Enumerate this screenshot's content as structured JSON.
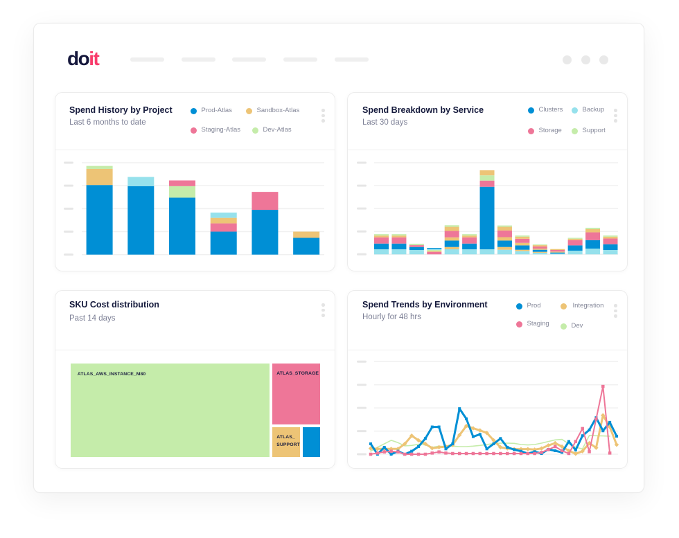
{
  "brand": {
    "logo_part1": "do",
    "logo_part2": "it"
  },
  "colors": {
    "blue": "#008fd5",
    "orange": "#edc476",
    "pink": "#ee7698",
    "green": "#c5ecaa",
    "cyan": "#96e1ec",
    "text_navy": "#151a3c",
    "logo_navy": "#14163b",
    "logo_pink": "#f83c6c"
  },
  "cards": [
    {
      "title": "Spend History by Project",
      "subtitle": "Last 6 months to date",
      "legend": [
        {
          "label": "Prod-Atlas",
          "color": "#008fd5"
        },
        {
          "label": "Sandbox-Atlas",
          "color": "#edc476"
        },
        {
          "label": "Staging-Atlas",
          "color": "#ee7698"
        },
        {
          "label": "Dev-Atlas",
          "color": "#c5ecaa"
        }
      ]
    },
    {
      "title": "Spend Breakdown by Service",
      "subtitle": "Last 30 days",
      "legend": [
        {
          "label": "Clusters",
          "color": "#008fd5"
        },
        {
          "label": "Backup",
          "color": "#96e1ec"
        },
        {
          "label": "Storage",
          "color": "#ee7698"
        },
        {
          "label": "Support",
          "color": "#c5ecaa"
        }
      ]
    },
    {
      "title": "SKU Cost distribution",
      "subtitle": "Past 14 days"
    },
    {
      "title": "Spend Trends by Environment",
      "subtitle": "Hourly for 48 hrs",
      "legend": [
        {
          "label": "Prod",
          "color": "#008fd5"
        },
        {
          "label": "Integration",
          "color": "#edc476"
        },
        {
          "label": "Staging",
          "color": "#ee7698"
        },
        {
          "label": "Dev",
          "color": "#c5ecaa"
        }
      ]
    }
  ],
  "chart_data": [
    {
      "type": "bar",
      "stacked": true,
      "title": "Spend History by Project",
      "subtitle": "Last 6 months to date",
      "xlabel": "",
      "ylabel": "",
      "ylim": [
        0,
        4
      ],
      "y_ticks": [
        0,
        1,
        2,
        3,
        4
      ],
      "grid": true,
      "legend": "top-right",
      "categories": [
        "",
        "",
        "",
        "",
        "",
        ""
      ],
      "series": [
        {
          "key": "prod",
          "name": "Prod-Atlas",
          "color": "#008fd5"
        },
        {
          "key": "sandbox",
          "name": "Sandbox-Atlas",
          "color": "#edc476"
        },
        {
          "key": "staging",
          "name": "Staging-Atlas",
          "color": "#ee7698"
        },
        {
          "key": "dev",
          "name": "Dev-Atlas",
          "color": "#c5ecaa"
        },
        {
          "key": "unlabeled",
          "name": "",
          "color": "#96e1ec"
        }
      ],
      "stacks": [
        [
          [
            "prod",
            3.03
          ],
          [
            "sandbox",
            0.7
          ],
          [
            "dev",
            0.13
          ]
        ],
        [
          [
            "prod",
            2.98
          ],
          [
            "unlabeled",
            0.4
          ]
        ],
        [
          [
            "prod",
            2.48
          ],
          [
            "dev",
            0.5
          ],
          [
            "staging",
            0.25
          ]
        ],
        [
          [
            "prod",
            1.0
          ],
          [
            "staging",
            0.36
          ],
          [
            "sandbox",
            0.24
          ],
          [
            "unlabeled",
            0.23
          ]
        ],
        [
          [
            "prod",
            1.95
          ],
          [
            "staging",
            0.78
          ]
        ],
        [
          [
            "prod",
            0.73
          ],
          [
            "sandbox",
            0.27
          ]
        ]
      ]
    },
    {
      "type": "bar",
      "stacked": true,
      "title": "Spend Breakdown by Service",
      "subtitle": "Last 30 days",
      "xlabel": "",
      "ylabel": "",
      "ylim": [
        0,
        4
      ],
      "y_ticks": [
        0,
        1,
        2,
        3,
        4
      ],
      "grid": true,
      "legend": "top-right",
      "categories": [
        "",
        "",
        "",
        "",
        "",
        "",
        "",
        "",
        "",
        "",
        "",
        "",
        "",
        ""
      ],
      "series": [
        {
          "key": "clusters",
          "name": "Clusters",
          "color": "#008fd5"
        },
        {
          "key": "backup",
          "name": "Backup",
          "color": "#96e1ec"
        },
        {
          "key": "storage",
          "name": "Storage",
          "color": "#ee7698"
        },
        {
          "key": "support",
          "name": "Support",
          "color": "#c5ecaa"
        },
        {
          "key": "unlabeled",
          "name": "",
          "color": "#edc476"
        }
      ],
      "stacks": [
        [
          [
            "backup",
            0.22
          ],
          [
            "clusters",
            0.25
          ],
          [
            "storage",
            0.27
          ],
          [
            "unlabeled",
            0.08
          ],
          [
            "support",
            0.06
          ]
        ],
        [
          [
            "backup",
            0.22
          ],
          [
            "clusters",
            0.25
          ],
          [
            "storage",
            0.27
          ],
          [
            "unlabeled",
            0.08
          ],
          [
            "support",
            0.06
          ]
        ],
        [
          [
            "backup",
            0.19
          ],
          [
            "clusters",
            0.13
          ],
          [
            "storage",
            0.08
          ],
          [
            "support",
            0.06
          ]
        ],
        [
          [
            "storage",
            0.11
          ],
          [
            "unlabeled",
            0.03
          ],
          [
            "support",
            0.05
          ],
          [
            "backup",
            0.05
          ],
          [
            "clusters",
            0.04
          ]
        ],
        [
          [
            "backup",
            0.22
          ],
          [
            "unlabeled",
            0.1
          ],
          [
            "clusters",
            0.28
          ],
          [
            "unlabeled",
            0.14
          ],
          [
            "storage",
            0.28
          ],
          [
            "unlabeled",
            0.18
          ],
          [
            "support",
            0.07
          ]
        ],
        [
          [
            "backup",
            0.22
          ],
          [
            "clusters",
            0.25
          ],
          [
            "storage",
            0.27
          ],
          [
            "unlabeled",
            0.08
          ],
          [
            "support",
            0.06
          ]
        ],
        [
          [
            "backup",
            0.22
          ],
          [
            "clusters",
            2.73
          ],
          [
            "storage",
            0.27
          ],
          [
            "support",
            0.23
          ],
          [
            "unlabeled",
            0.22
          ]
        ],
        [
          [
            "backup",
            0.2
          ],
          [
            "unlabeled",
            0.12
          ],
          [
            "clusters",
            0.28
          ],
          [
            "unlabeled",
            0.15
          ],
          [
            "storage",
            0.29
          ],
          [
            "unlabeled",
            0.16
          ],
          [
            "support",
            0.06
          ]
        ],
        [
          [
            "backup",
            0.14
          ],
          [
            "unlabeled",
            0.06
          ],
          [
            "clusters",
            0.19
          ],
          [
            "unlabeled",
            0.11
          ],
          [
            "storage",
            0.18
          ],
          [
            "unlabeled",
            0.09
          ],
          [
            "support",
            0.05
          ]
        ],
        [
          [
            "backup",
            0.07
          ],
          [
            "unlabeled",
            0.04
          ],
          [
            "clusters",
            0.09
          ],
          [
            "unlabeled",
            0.05
          ],
          [
            "storage",
            0.09
          ],
          [
            "unlabeled",
            0.06
          ],
          [
            "support",
            0.03
          ]
        ],
        [
          [
            "backup",
            0.03
          ],
          [
            "clusters",
            0.05
          ],
          [
            "unlabeled",
            0.04
          ],
          [
            "storage",
            0.07
          ],
          [
            "unlabeled",
            0.04
          ]
        ],
        [
          [
            "backup",
            0.16
          ],
          [
            "clusters",
            0.23
          ],
          [
            "storage",
            0.23
          ],
          [
            "unlabeled",
            0.06
          ],
          [
            "support",
            0.04
          ]
        ],
        [
          [
            "backup",
            0.25
          ],
          [
            "clusters",
            0.37
          ],
          [
            "storage",
            0.34
          ],
          [
            "unlabeled",
            0.14
          ],
          [
            "support",
            0.06
          ]
        ],
        [
          [
            "backup",
            0.19
          ],
          [
            "clusters",
            0.25
          ],
          [
            "storage",
            0.25
          ],
          [
            "unlabeled",
            0.08
          ],
          [
            "support",
            0.05
          ]
        ]
      ]
    },
    {
      "type": "treemap",
      "title": "SKU Cost distribution",
      "subtitle": "Past 14 days",
      "tiles": [
        {
          "label": "ATLAS_AWS_INSTANCE_M80",
          "share": 81.0,
          "color": "#c5ecaa"
        },
        {
          "label": "ATLAS_STORAGE",
          "share": 12.7,
          "color": "#ee7698"
        },
        {
          "label": "ATLAS_​SUPPORT",
          "share": 3.8,
          "color": "#edc476"
        },
        {
          "label": "",
          "share": 2.5,
          "color": "#008fd5"
        }
      ]
    },
    {
      "type": "line",
      "title": "Spend Trends by Environment",
      "subtitle": "Hourly for 48 hrs",
      "xlabel": "",
      "ylabel": "",
      "ylim": [
        0,
        4
      ],
      "y_ticks": [
        0,
        1,
        2,
        3,
        4
      ],
      "grid": true,
      "legend": "top-right",
      "x": [
        0,
        1,
        2,
        3,
        4,
        5,
        6,
        7,
        8,
        9,
        10,
        11,
        12,
        13,
        14,
        15,
        16,
        17,
        18,
        19,
        20,
        21,
        22,
        23,
        24,
        25,
        26,
        27,
        28,
        29,
        30,
        31,
        32,
        33,
        34,
        35,
        36
      ],
      "series": [
        {
          "key": "prod",
          "name": "Prod",
          "color": "#008fd5",
          "marker": "square",
          "values": [
            0.45,
            0,
            0.3,
            0,
            0.13,
            0,
            0.13,
            0.33,
            0.68,
            1.18,
            1.18,
            0.23,
            0.45,
            1.97,
            1.53,
            0.76,
            0.86,
            0.23,
            0.45,
            0.68,
            0.3,
            0.2,
            0.13,
            0.03,
            0.11,
            0.03,
            0.21,
            0.15,
            0.08,
            0.55,
            0.18,
            0.8,
            1.05,
            1.58,
            1.01,
            1.38,
            0.78
          ]
        },
        {
          "key": "integration",
          "name": "Integration",
          "color": "#edc476",
          "marker": "diamond",
          "values": [
            0.25,
            0.23,
            0.23,
            0.23,
            0.23,
            0.45,
            0.8,
            0.6,
            0.45,
            0.26,
            0.3,
            0.33,
            0.4,
            0.83,
            1.22,
            1.12,
            1.03,
            0.92,
            0.6,
            0.3,
            0.25,
            0.22,
            0.22,
            0.22,
            0.2,
            0.25,
            0.38,
            0.48,
            0.33,
            0.15,
            0.02,
            0.13,
            0.48,
            0.28,
            1.68,
            1.18,
            0.41
          ]
        },
        {
          "key": "staging",
          "name": "Staging",
          "color": "#ee7698",
          "marker": "square",
          "values": [
            0,
            0.05,
            0.1,
            0.13,
            0.1,
            0,
            0,
            0,
            0,
            0.05,
            0.1,
            0.05,
            0.03,
            0.03,
            0.03,
            0.03,
            0.03,
            0.03,
            0.03,
            0.03,
            0.03,
            0.03,
            0.03,
            0.03,
            0.03,
            0.08,
            0.2,
            0.33,
            0.15,
            0.03,
            0.55,
            1.11,
            0.11,
            1.52,
            2.93,
            0.05,
            null
          ]
        },
        {
          "key": "dev",
          "name": "Dev",
          "color": "#c5ecaa",
          "marker": "none",
          "values": [
            0.13,
            0.3,
            0.45,
            0.6,
            0.5,
            0.36,
            0.38,
            0.43,
            0.4,
            0.3,
            0.35,
            0.33,
            0.35,
            0.33,
            0.33,
            0.35,
            0.38,
            0.42,
            0.46,
            0.48,
            0.48,
            0.47,
            0.42,
            0.4,
            0.42,
            0.48,
            0.55,
            0.62,
            0.64,
            0.45,
            0.3,
            0.23,
            0.81,
            0.8,
            0.79,
            0.78,
            null
          ]
        }
      ]
    }
  ]
}
